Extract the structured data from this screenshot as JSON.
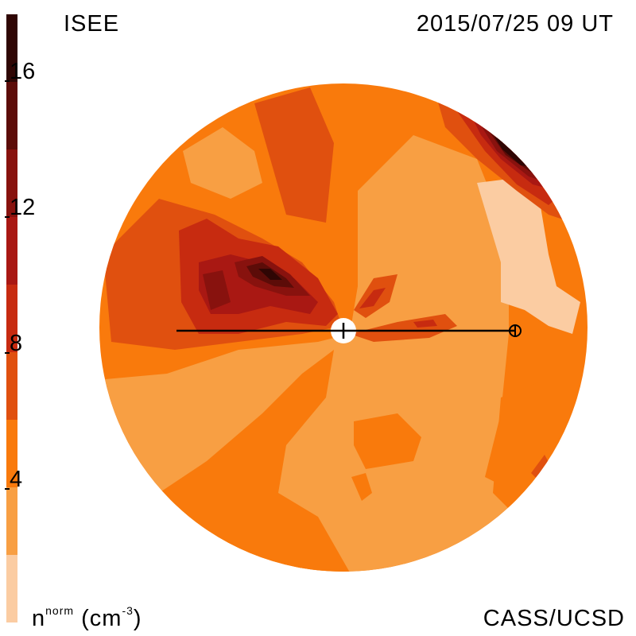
{
  "header": {
    "instrument": "ISEE",
    "datetime": "2015/07/25 09 UT"
  },
  "footer": {
    "quantity_base": "n",
    "quantity_sup": "norm",
    "quantity_unit_open": "(cm",
    "quantity_unit_sup": "-3",
    "quantity_unit_close": ")",
    "credit": "CASS/UCSD"
  },
  "colorbar": {
    "ticks": [
      "16",
      "12",
      "8",
      "4"
    ],
    "tick_values": [
      16,
      12,
      8,
      4
    ],
    "range": [
      0,
      18
    ],
    "colors": [
      "#fbcca2",
      "#f89f43",
      "#f97a0c",
      "#e0500f",
      "#c72b10",
      "#a91813",
      "#88120e",
      "#5c0c08",
      "#2f0604"
    ]
  },
  "map": {
    "observer_marker": "crosshair-circle",
    "sun_marker": "sun-disk",
    "earth_marker": "earth-circle"
  }
}
